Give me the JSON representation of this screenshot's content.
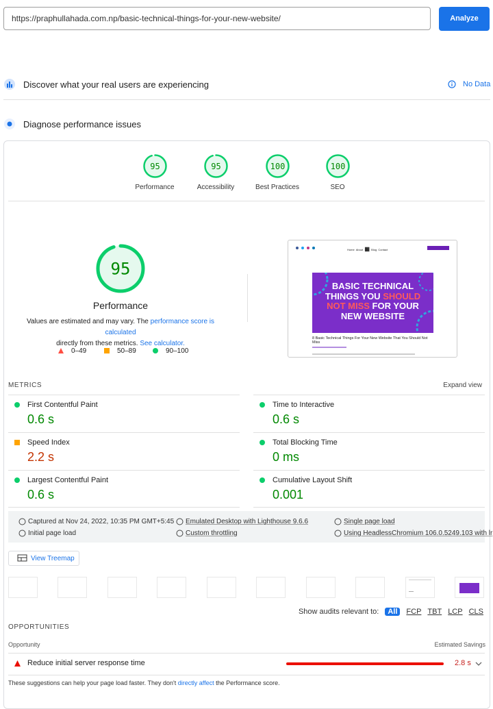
{
  "url": "https://praphullahada.com.np/basic-technical-things-for-your-new-website/",
  "analyze_button": "Analyze",
  "field_data": {
    "title": "Discover what your real users are experiencing",
    "status": "No Data"
  },
  "diagnose_title": "Diagnose performance issues",
  "scores": [
    {
      "value": 95,
      "label": "Performance"
    },
    {
      "value": 95,
      "label": "Accessibility"
    },
    {
      "value": 100,
      "label": "Best Practices"
    },
    {
      "value": 100,
      "label": "SEO"
    }
  ],
  "score_note": {
    "prefix": "Values are estimated and may vary. The ",
    "link": "performance score is calculated",
    "middle": "directly from these metrics. ",
    "link2": "See calculator."
  },
  "legend": [
    "0–49",
    "50–89",
    "90–100"
  ],
  "screenshot": {
    "nav": [
      "Home",
      "About",
      "Blog",
      "Contact"
    ],
    "headline": [
      [
        "BASIC TECHNICAL"
      ],
      [
        "THINGS YOU ",
        "SHOULD"
      ],
      [
        "NOT MISS",
        " FOR YOUR"
      ],
      [
        "NEW WEBSITE"
      ]
    ],
    "caption": "8 Basic Technical Things For Your New Website That You Should Not Miss"
  },
  "metrics": {
    "title": "METRICS",
    "expand": "Expand view",
    "items": [
      {
        "name": "First Contentful Paint",
        "value": "0.6 s",
        "rating": "pass"
      },
      {
        "name": "Time to Interactive",
        "value": "0.6 s",
        "rating": "pass"
      },
      {
        "name": "Speed Index",
        "value": "2.2 s",
        "rating": "average"
      },
      {
        "name": "Total Blocking Time",
        "value": "0 ms",
        "rating": "pass"
      },
      {
        "name": "Largest Contentful Paint",
        "value": "0.6 s",
        "rating": "pass"
      },
      {
        "name": "Cumulative Layout Shift",
        "value": "0.001",
        "rating": "pass"
      }
    ]
  },
  "run_info": [
    "Captured at Nov 24, 2022, 10:35 PM GMT+5:45",
    "Emulated Desktop with Lighthouse 9.6.6",
    "Single page load",
    "Initial page load",
    "Custom throttling",
    "Using HeadlessChromium 106.0.5249.103 with lr"
  ],
  "treemap_button": "View Treemap",
  "filter": {
    "label": "Show audits relevant to:",
    "options": [
      "All",
      "FCP",
      "TBT",
      "LCP",
      "CLS"
    ]
  },
  "opportunities": {
    "title": "OPPORTUNITIES",
    "column_left": "Opportunity",
    "column_right": "Estimated Savings",
    "items": [
      {
        "title": "Reduce initial server response time",
        "savings": "2.8 s"
      }
    ],
    "footer": {
      "prefix": "These suggestions can help your page load faster. They don't ",
      "link": "directly affect",
      "suffix": " the Performance score."
    }
  }
}
